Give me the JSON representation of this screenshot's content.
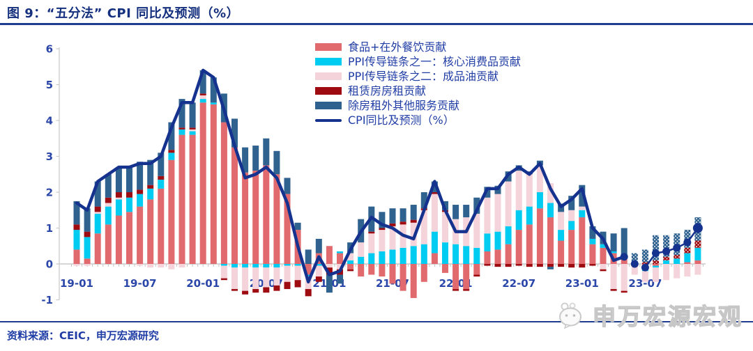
{
  "page": {
    "title": "图 9：“五分法” CPI 同比及预测（%）",
    "source": "资料来源：CEIC，申万宏源研究",
    "watermark": "申万宏源宏观"
  },
  "colors": {
    "title_text": "#14307E",
    "axis_text": "#2A46A8",
    "legend_text": "#203DA5",
    "rule": "#1E3D8F",
    "axis_line": "#C9C9C9",
    "food": "#E06A6E",
    "core_goods": "#00CBF0",
    "oil": "#F4D4DA",
    "rent": "#9E0B10",
    "services": "#2F628F",
    "cpi_line": "#16328F",
    "watermark_gray": "#C6C6C6"
  },
  "legend": {
    "items": [
      {
        "label": "食品+在外餐饮贡献",
        "color_key": "food",
        "type": "bar"
      },
      {
        "label": "PPI传导链条之一：核心消费品贡献",
        "color_key": "core_goods",
        "type": "bar"
      },
      {
        "label": "PPI传导链条之二：成品油贡献",
        "color_key": "oil",
        "type": "bar"
      },
      {
        "label": "租赁房房租贡献",
        "color_key": "rent",
        "type": "bar"
      },
      {
        "label": "除房租外其他服务贡献",
        "color_key": "services",
        "type": "bar"
      },
      {
        "label": "CPI同比及预测（%）",
        "color_key": "cpi_line",
        "type": "line"
      }
    ]
  },
  "chart_data": {
    "type": "bar",
    "subtype": "stacked-bars-with-line",
    "title": "“五分法” CPI 同比及预测（%）",
    "ylim": [
      -1,
      6
    ],
    "y_ticks": [
      6,
      5,
      4,
      3,
      2,
      1,
      0,
      -1
    ],
    "grid": false,
    "legend_position": "top-center-inside",
    "categories": [
      "19-01",
      "19-02",
      "19-03",
      "19-04",
      "19-05",
      "19-06",
      "19-07",
      "19-08",
      "19-09",
      "19-10",
      "19-11",
      "19-12",
      "20-01",
      "20-02",
      "20-03",
      "20-04",
      "20-05",
      "20-06",
      "20-07",
      "20-08",
      "20-09",
      "20-10",
      "20-11",
      "20-12",
      "21-01",
      "21-02",
      "21-03",
      "21-04",
      "21-05",
      "21-06",
      "21-07",
      "21-08",
      "21-09",
      "21-10",
      "21-11",
      "21-12",
      "22-01",
      "22-02",
      "22-03",
      "22-04",
      "22-05",
      "22-06",
      "22-07",
      "22-08",
      "22-09",
      "22-10",
      "22-11",
      "22-12",
      "23-01",
      "23-02",
      "23-03",
      "23-04",
      "23-05",
      "23-06",
      "23-07",
      "23-08",
      "23-09",
      "23-10",
      "23-11",
      "23-12"
    ],
    "x_tick_labels": [
      {
        "label": "19-01",
        "index": 0
      },
      {
        "label": "19-07",
        "index": 6
      },
      {
        "label": "20-01",
        "index": 12
      },
      {
        "label": "20-07",
        "index": 18
      },
      {
        "label": "21-01",
        "index": 24
      },
      {
        "label": "21-07",
        "index": 30
      },
      {
        "label": "22-01",
        "index": 36
      },
      {
        "label": "22-07",
        "index": 42
      },
      {
        "label": "23-01",
        "index": 48
      },
      {
        "label": "23-07",
        "index": 54
      }
    ],
    "series": [
      {
        "name": "食品+在外餐饮贡献",
        "key": "food",
        "values": [
          0.4,
          0.15,
          0.85,
          1.1,
          1.35,
          1.45,
          1.6,
          1.8,
          2.1,
          2.9,
          3.6,
          3.6,
          4.5,
          4.45,
          3.95,
          3.25,
          2.55,
          2.6,
          2.75,
          2.5,
          1.95,
          0.95,
          -0.3,
          0.3,
          0.5,
          0.3,
          -0.15,
          -0.35,
          -0.3,
          -0.35,
          -0.55,
          -0.75,
          -0.95,
          -0.5,
          0.3,
          -0.25,
          -0.7,
          -0.7,
          -0.3,
          0.35,
          0.4,
          0.55,
          0.95,
          1.1,
          1.55,
          1.3,
          0.65,
          0.95,
          1.3,
          0.55,
          0.45,
          0.3,
          0.2,
          0.0,
          -0.1,
          -0.05,
          0.0,
          0.0,
          0.05,
          0.1
        ]
      },
      {
        "name": "PPI传导链条之一：核心消费品贡献",
        "key": "core_goods",
        "values": [
          0.55,
          0.6,
          0.55,
          0.5,
          0.45,
          0.4,
          0.35,
          0.3,
          0.25,
          0.2,
          0.15,
          0.1,
          0.1,
          0.05,
          -0.05,
          -0.1,
          -0.1,
          -0.1,
          -0.1,
          -0.1,
          -0.05,
          -0.05,
          -0.05,
          -0.05,
          0.0,
          0.05,
          0.1,
          0.2,
          0.3,
          0.35,
          0.4,
          0.45,
          0.5,
          0.55,
          0.6,
          0.6,
          0.55,
          0.5,
          0.45,
          0.5,
          0.5,
          0.5,
          0.55,
          0.5,
          0.45,
          0.4,
          0.3,
          0.25,
          0.2,
          0.15,
          0.1,
          0.05,
          0.0,
          -0.05,
          -0.1,
          -0.05,
          0.1,
          0.15,
          0.25,
          0.35
        ]
      },
      {
        "name": "PPI传导链条之二：成品油贡献",
        "key": "oil",
        "values": [
          -0.05,
          -0.05,
          0.05,
          0.1,
          0.05,
          0.0,
          -0.05,
          -0.1,
          -0.1,
          -0.15,
          -0.1,
          0.05,
          0.1,
          0.0,
          -0.35,
          -0.6,
          -0.65,
          -0.6,
          -0.55,
          -0.5,
          -0.45,
          -0.4,
          -0.35,
          -0.3,
          -0.1,
          -0.15,
          0.2,
          0.4,
          0.55,
          0.6,
          0.65,
          0.65,
          0.65,
          0.95,
          1.05,
          0.85,
          0.7,
          0.8,
          0.95,
          1.0,
          1.05,
          1.25,
          1.1,
          0.9,
          0.75,
          0.55,
          0.5,
          0.3,
          0.1,
          0.0,
          -0.15,
          -0.7,
          -0.75,
          -0.25,
          -0.3,
          -0.4,
          -0.45,
          -0.4,
          -0.35,
          -0.3
        ]
      },
      {
        "name": "租赁房房租贡献",
        "key": "rent",
        "values": [
          0.15,
          0.15,
          0.15,
          0.15,
          0.15,
          0.15,
          0.12,
          0.1,
          0.1,
          0.08,
          0.05,
          0.05,
          0.05,
          0.0,
          -0.05,
          -0.05,
          -0.1,
          -0.1,
          -0.15,
          -0.15,
          -0.2,
          -0.2,
          -0.2,
          -0.15,
          -0.2,
          -0.15,
          -0.05,
          0.0,
          0.05,
          0.05,
          0.08,
          0.08,
          0.08,
          0.05,
          0.05,
          0.05,
          -0.05,
          -0.05,
          -0.05,
          -0.05,
          -0.08,
          -0.08,
          -0.05,
          -0.08,
          -0.08,
          -0.08,
          -0.08,
          -0.1,
          -0.1,
          -0.05,
          -0.05,
          -0.05,
          -0.05,
          0.02,
          0.05,
          0.1,
          0.1,
          0.1,
          0.15,
          0.2
        ]
      },
      {
        "name": "除房租外其他服务贡献",
        "key": "services",
        "values": [
          0.65,
          0.65,
          0.7,
          0.65,
          0.7,
          0.7,
          0.78,
          0.7,
          0.65,
          0.77,
          0.8,
          0.7,
          0.65,
          0.7,
          0.8,
          0.8,
          0.7,
          0.7,
          0.75,
          0.65,
          0.45,
          0.2,
          0.4,
          0.4,
          -0.5,
          -0.25,
          0.3,
          0.65,
          0.7,
          0.45,
          0.42,
          0.37,
          0.42,
          0.45,
          0.3,
          0.25,
          0.4,
          0.35,
          0.45,
          0.3,
          0.23,
          0.28,
          0.15,
          0.08,
          0.13,
          -0.07,
          0.23,
          0.4,
          0.6,
          0.35,
          0.35,
          0.5,
          0.8,
          0.28,
          0.35,
          0.7,
          0.6,
          0.6,
          0.5,
          0.65
        ]
      }
    ],
    "line": {
      "name": "CPI同比及预测（%）",
      "values": [
        1.7,
        1.5,
        2.3,
        2.5,
        2.7,
        2.7,
        2.8,
        2.8,
        3.0,
        3.8,
        4.5,
        4.5,
        5.4,
        5.2,
        4.3,
        3.3,
        2.4,
        2.5,
        2.7,
        2.4,
        1.7,
        0.5,
        -0.5,
        0.2,
        -0.3,
        -0.2,
        0.4,
        0.9,
        1.3,
        1.1,
        1.0,
        0.8,
        0.7,
        1.5,
        2.3,
        1.5,
        0.9,
        0.9,
        1.5,
        2.1,
        2.1,
        2.5,
        2.7,
        2.5,
        2.8,
        2.1,
        1.6,
        1.8,
        2.1,
        1.0,
        0.7,
        0.1,
        0.2,
        0.0,
        -0.1,
        0.3,
        0.35,
        0.45,
        0.6,
        1.0
      ],
      "solid_through_index": 52,
      "marker_from_index": 52
    },
    "forecast_start_index": 53
  }
}
